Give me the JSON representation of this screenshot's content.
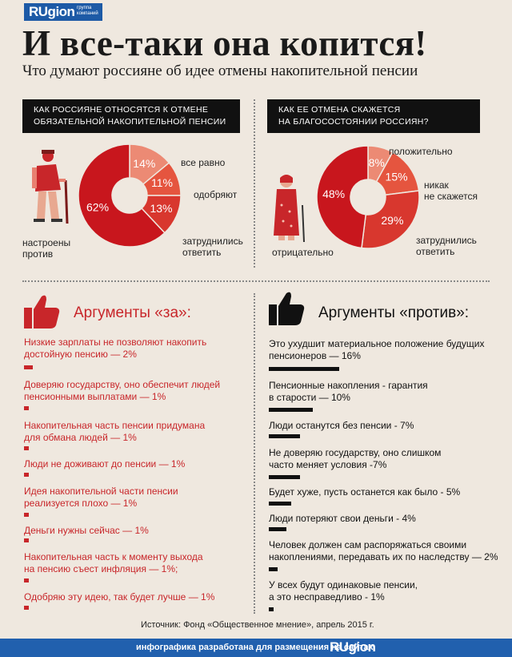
{
  "brand": {
    "name": "RUgion",
    "tagline": "группа компаний"
  },
  "title": "И все-таки она копится!",
  "subtitle": "Что думают россияне об идее отмены накопительной пенсии",
  "left_panel": {
    "question_line1": "КАК РОССИЯНЕ ОТНОСЯТСЯ К ОТМЕНЕ",
    "question_line2": "ОБЯЗАТЕЛЬНОЙ НАКОПИТЕЛЬНОЙ ПЕНСИИ",
    "labels": {
      "indifferent": "все равно",
      "approve": "одобряют",
      "undecided_1": "затруднились",
      "undecided_2": "ответить",
      "against_1": "настроены",
      "against_2": "против"
    }
  },
  "right_panel": {
    "question_line1": "КАК ЕЕ ОТМЕНА СКАЖЕТСЯ",
    "question_line2": "НА БЛАГОСОСТОЯНИИ РОССИЯН?",
    "labels": {
      "positive": "положительно",
      "none_1": "никак",
      "none_2": "не скажется",
      "undecided_1": "затруднились",
      "undecided_2": "ответить",
      "negative": "отрицательно"
    }
  },
  "chart_data": [
    {
      "type": "pie",
      "title": "КАК РОССИЯНЕ ОТНОСЯТСЯ К ОТМЕНЕ ОБЯЗАТЕЛЬНОЙ НАКОПИТЕЛЬНОЙ ПЕНСИИ",
      "categories": [
        "все равно",
        "одобряют",
        "затруднились ответить",
        "настроены против"
      ],
      "values": [
        14,
        11,
        13,
        62
      ],
      "labels": [
        "14%",
        "11%",
        "13%",
        "62%"
      ],
      "colors": [
        "#ec8a74",
        "#e5553f",
        "#d8372e",
        "#c8161d"
      ]
    },
    {
      "type": "pie",
      "title": "КАК ЕЕ ОТМЕНА СКАЖЕТСЯ НА БЛАГОСОСТОЯНИИ РОССИЯН?",
      "categories": [
        "положительно",
        "никак не скажется",
        "затруднились ответить",
        "отрицательно"
      ],
      "values": [
        8,
        15,
        29,
        48
      ],
      "labels": [
        "8%",
        "15%",
        "29%",
        "48%"
      ],
      "colors": [
        "#ec8a74",
        "#e5553f",
        "#d8372e",
        "#c8161d"
      ]
    }
  ],
  "pro": {
    "heading": "Аргументы «за»:",
    "color": "#c8262a",
    "items": [
      {
        "l1": "Низкие зарплаты не позволяют накопить",
        "l2": "достойную пенсию — 2%",
        "value": 2
      },
      {
        "l1": "Доверяю государству, оно обеспечит людей",
        "l2": "пенсионными выплатами — 1%",
        "value": 1
      },
      {
        "l1": "Накопительная часть пенсии придумана",
        "l2": "для обмана людей — 1%",
        "value": 1
      },
      {
        "l1": "Люди не доживают до пенсии — 1%",
        "l2": "",
        "value": 1
      },
      {
        "l1": "Идея накопительной части пенсии",
        "l2": "реализуется плохо — 1%",
        "value": 1
      },
      {
        "l1": "Деньги нужны сейчас — 1%",
        "l2": "",
        "value": 1
      },
      {
        "l1": "Накопительная часть к моменту выхода",
        "l2": "на пенсию съест инфляция — 1%;",
        "value": 1
      },
      {
        "l1": "Одобряю эту идею, так будет лучше — 1%",
        "l2": "",
        "value": 1
      }
    ]
  },
  "con": {
    "heading": "Аргументы «против»:",
    "color": "#111111",
    "items": [
      {
        "l1": "Это ухудшит материальное положение будущих",
        "l2": "пенсионеров — 16%",
        "value": 16
      },
      {
        "l1": "Пенсионные накопления - гарантия",
        "l2": "в старости — 10%",
        "value": 10
      },
      {
        "l1": "Люди останутся без пенсии - 7%",
        "l2": "",
        "value": 7
      },
      {
        "l1": "Не доверяю государству, оно слишком",
        "l2": "часто меняет условия -7%",
        "value": 7
      },
      {
        "l1": "Будет хуже, пусть останется как было - 5%",
        "l2": "",
        "value": 5
      },
      {
        "l1": "Люди потеряют свои деньги - 4%",
        "l2": "",
        "value": 4
      },
      {
        "l1": "Человек должен сам распоряжаться своими",
        "l2": "накоплениями, передавать их по наследству — 2%",
        "value": 2
      },
      {
        "l1": "У всех будут одинаковые пенсии,",
        "l2": "а это несправедливо - 1%",
        "value": 1
      }
    ]
  },
  "source": "Источник: Фонд «Общественное мнение», апрель 2015 г.",
  "footer": {
    "text": "инфографика разработана для размещения на сайтах",
    "brand": "RUgion"
  }
}
